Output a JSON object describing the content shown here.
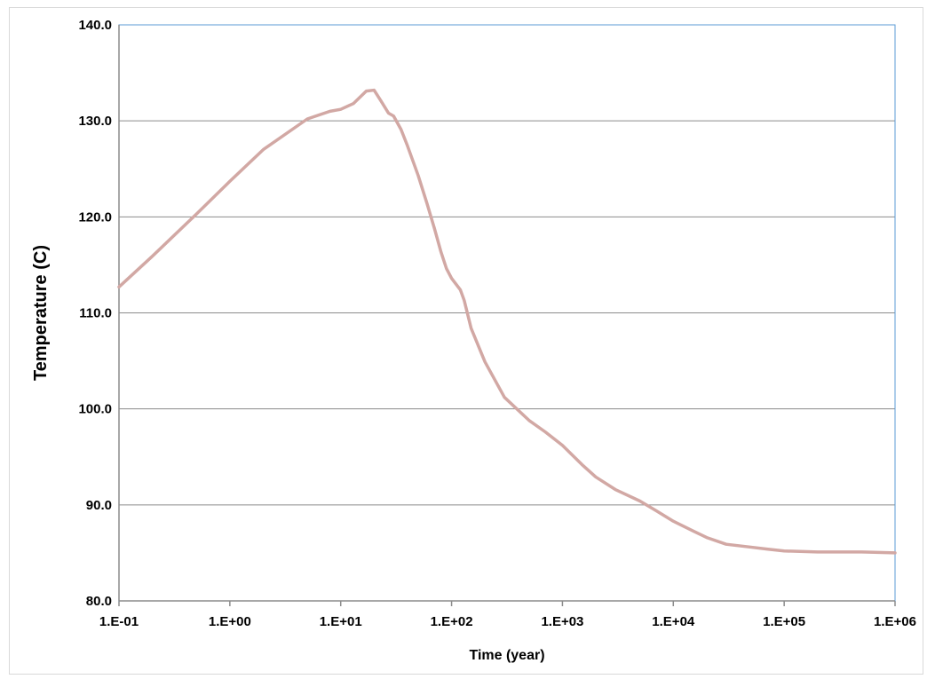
{
  "chart_data": {
    "type": "line",
    "title": "",
    "xlabel": "Time (year)",
    "ylabel": "Temperature (C)",
    "x_scale": "log",
    "xlim": [
      0.1,
      1000000
    ],
    "ylim": [
      80,
      140
    ],
    "x_ticks": [
      0.1,
      1,
      10,
      100,
      1000,
      10000,
      100000,
      1000000
    ],
    "x_tick_labels": [
      "1.E-01",
      "1.E+00",
      "1.E+01",
      "1.E+02",
      "1.E+03",
      "1.E+04",
      "1.E+05",
      "1.E+06"
    ],
    "y_ticks": [
      80,
      90,
      100,
      110,
      120,
      130,
      140
    ],
    "y_tick_labels": [
      "80.0",
      "90.0",
      "100.0",
      "110.0",
      "120.0",
      "130.0",
      "140.0"
    ],
    "grid": "horizontal",
    "legend": "none",
    "series": [
      {
        "color": "#d2a8a4",
        "x": [
          0.1,
          0.2,
          0.5,
          1,
          2,
          5,
          8,
          10,
          13,
          17,
          20,
          23,
          27,
          30,
          35,
          40,
          50,
          60,
          70,
          80,
          90,
          100,
          120,
          130,
          150,
          200,
          300,
          500,
          700,
          1000,
          1500,
          2000,
          3000,
          5000,
          7000,
          10000,
          15000,
          20000,
          30000,
          50000,
          70000,
          100000,
          200000,
          500000,
          1000000
        ],
        "y": [
          112.7,
          115.9,
          120.3,
          123.7,
          127.0,
          130.2,
          131.0,
          131.2,
          131.8,
          133.1,
          133.2,
          132.1,
          130.8,
          130.5,
          129.1,
          127.4,
          124.3,
          121.4,
          118.8,
          116.4,
          114.6,
          113.6,
          112.4,
          111.3,
          108.4,
          104.9,
          101.2,
          98.8,
          97.6,
          96.2,
          94.2,
          92.9,
          91.6,
          90.4,
          89.4,
          88.3,
          87.3,
          86.6,
          85.9,
          85.6,
          85.4,
          85.2,
          85.1,
          85.1,
          85.0
        ]
      }
    ]
  }
}
